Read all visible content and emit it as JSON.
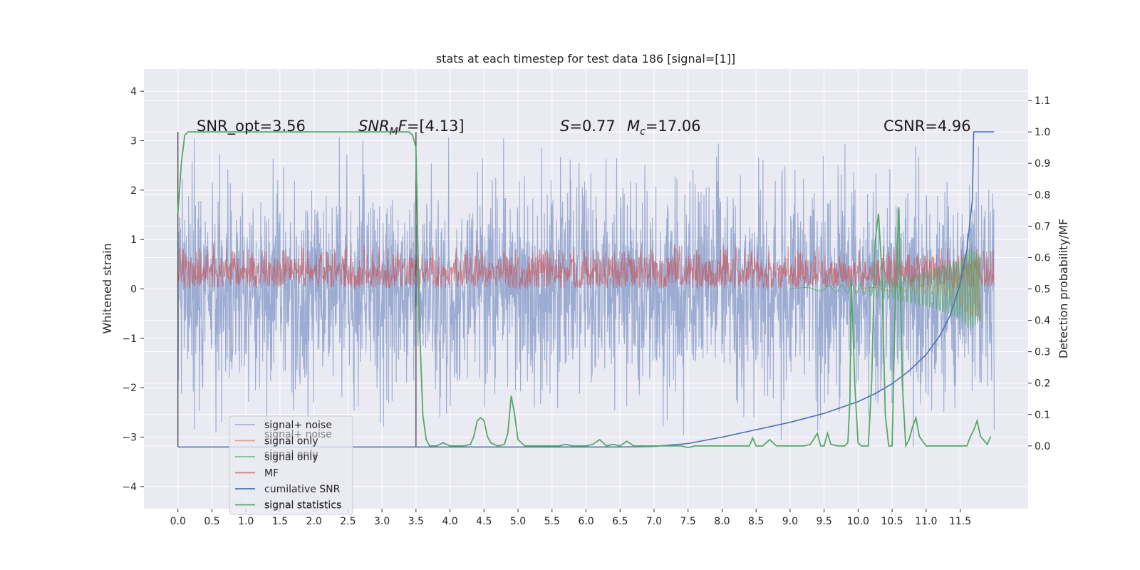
{
  "chart_data": {
    "type": "line",
    "title": "stats at each timestep for test data 186 [signal=[1]]",
    "ylabel_left": "Whitened strain",
    "ylabel_right": "Detection probability/MF",
    "xlim": [
      -0.5,
      12.5
    ],
    "ylim_left": [
      -4.45,
      4.45
    ],
    "ylim_right": [
      -0.2,
      1.2
    ],
    "x_ticks": [
      0.0,
      0.5,
      1.0,
      1.5,
      2.0,
      2.5,
      3.0,
      3.5,
      4.0,
      4.5,
      5.0,
      5.5,
      6.0,
      6.5,
      7.0,
      7.5,
      8.0,
      8.5,
      9.0,
      9.5,
      10.0,
      10.5,
      11.0,
      11.5
    ],
    "x_tick_labels": [
      "0.0",
      "0.5",
      "1.0",
      "1.5",
      "2.0",
      "2.5",
      "3.0",
      "3.5",
      "4.0",
      "4.5",
      "5.0",
      "5.5",
      "6.0",
      "6.5",
      "7.0",
      "7.5",
      "8.0",
      "8.5",
      "9.0",
      "9.5",
      "10.0",
      "10.5",
      "11.0",
      "11.5"
    ],
    "y_left_ticks": [
      4,
      3,
      2,
      1,
      0,
      -1,
      -2,
      -3,
      -4
    ],
    "y_left_tick_labels": [
      "4",
      "3",
      "2",
      "1",
      "0",
      "−1",
      "−2",
      "−3",
      "−4"
    ],
    "y_right_ticks": [
      1.1,
      1.0,
      0.9,
      0.8,
      0.7,
      0.6,
      0.5,
      0.4,
      0.3,
      0.2,
      0.1,
      0.0
    ],
    "y_right_tick_labels": [
      "1.1",
      "1.0",
      "0.9",
      "0.8",
      "0.7",
      "0.6",
      "0.5",
      "0.4",
      "0.3",
      "0.2",
      "0.1",
      "0.0"
    ],
    "grid": true,
    "legend_position": "lower-left",
    "annotations": [
      {
        "id": "snr_opt",
        "text": "SNR_opt=3.56"
      },
      {
        "id": "snr_mf",
        "text": "SNR_MF=[4.13]"
      },
      {
        "id": "s_val",
        "text": "S=0.77"
      },
      {
        "id": "mc_val",
        "text": "M_c=17.06"
      },
      {
        "id": "csnr",
        "text": "CSNR=4.96"
      }
    ],
    "series": [
      {
        "name": "signal+ noise",
        "axis": "left",
        "color": "#8da0cb",
        "description_range": [
          -3.6,
          4.05
        ],
        "x_range": [
          0,
          12
        ],
        "style": "dense-noise"
      },
      {
        "name": "signal only",
        "axis": "left",
        "color": "#dd8452",
        "style": "chirp",
        "x": [
          10.0,
          10.5,
          11.0,
          11.3,
          11.5,
          11.65,
          11.8
        ],
        "envelope": [
          0.02,
          0.04,
          0.08,
          0.15,
          0.3,
          0.55,
          0.65
        ]
      },
      {
        "name": "signal only",
        "axis": "left",
        "color": "#55a868",
        "style": "chirp",
        "x": [
          9.0,
          9.5,
          10.0,
          10.5,
          11.0,
          11.3,
          11.5,
          11.65,
          11.8
        ],
        "envelope": [
          0.01,
          0.05,
          0.1,
          0.2,
          0.35,
          0.5,
          0.6,
          0.85,
          0.65
        ]
      },
      {
        "name": "MF",
        "axis": "left",
        "color": "#c44e52",
        "style": "band",
        "band": [
          0.0,
          0.95
        ],
        "x_range": [
          0,
          12
        ]
      },
      {
        "name": "cumilative SNR",
        "axis": "left",
        "color": "#4c72b0",
        "x": [
          0,
          0.5,
          1,
          1.5,
          2,
          2.5,
          3,
          3.5,
          4,
          4.5,
          5,
          5.5,
          6,
          6.5,
          7,
          7.5,
          8,
          8.5,
          9,
          9.5,
          10,
          10.25,
          10.5,
          10.75,
          11,
          11.2,
          11.35,
          11.5,
          11.6,
          11.68,
          11.7,
          12.0
        ],
        "values": [
          -3.2,
          -3.2,
          -3.2,
          -3.2,
          -3.2,
          -3.2,
          -3.2,
          -3.2,
          -3.2,
          -3.2,
          -3.2,
          -3.2,
          -3.2,
          -3.2,
          -3.19,
          -3.13,
          -3.0,
          -2.85,
          -2.7,
          -2.52,
          -2.28,
          -2.12,
          -1.92,
          -1.66,
          -1.33,
          -0.95,
          -0.55,
          0.1,
          0.8,
          1.8,
          3.18,
          3.18
        ]
      },
      {
        "name": "signal statistics",
        "axis": "right",
        "color": "#55a868",
        "x": [
          0.0,
          0.05,
          0.1,
          0.15,
          0.3,
          0.6,
          1.0,
          1.5,
          2.0,
          2.5,
          3.0,
          3.3,
          3.4,
          3.45,
          3.5,
          3.55,
          3.6,
          3.65,
          3.7,
          3.8,
          3.9,
          4.0,
          4.1,
          4.2,
          4.3,
          4.35,
          4.4,
          4.45,
          4.5,
          4.55,
          4.6,
          4.7,
          4.8,
          4.85,
          4.9,
          4.95,
          5.0,
          5.1,
          5.2,
          5.4,
          5.6,
          5.7,
          5.8,
          6.0,
          6.1,
          6.2,
          6.3,
          6.4,
          6.5,
          6.6,
          6.7,
          6.8,
          7.0,
          7.2,
          7.4,
          7.5,
          7.6,
          7.8,
          8.0,
          8.2,
          8.4,
          8.45,
          8.5,
          8.6,
          8.7,
          8.8,
          8.9,
          9.0,
          9.1,
          9.2,
          9.3,
          9.4,
          9.45,
          9.5,
          9.55,
          9.6,
          9.7,
          9.8,
          9.85,
          9.88,
          9.9,
          9.95,
          10.0,
          10.05,
          10.1,
          10.15,
          10.2,
          10.25,
          10.3,
          10.35,
          10.4,
          10.45,
          10.5,
          10.55,
          10.6,
          10.65,
          10.7,
          10.75,
          10.8,
          10.85,
          10.9,
          11.0,
          11.2,
          11.4,
          11.5,
          11.6,
          11.65,
          11.7,
          11.75,
          11.8,
          11.9,
          11.95
        ],
        "values": [
          0.74,
          0.9,
          0.99,
          1.0,
          1.0,
          1.0,
          1.0,
          1.0,
          1.0,
          1.0,
          1.0,
          1.0,
          1.0,
          0.99,
          0.95,
          0.4,
          0.1,
          0.02,
          0.0,
          0.0,
          0.01,
          0.0,
          0.0,
          0.0,
          0.005,
          0.03,
          0.08,
          0.09,
          0.08,
          0.03,
          0.01,
          0.0,
          0.005,
          0.04,
          0.16,
          0.1,
          0.02,
          0.0,
          0.0,
          0.0,
          0.0,
          0.005,
          0.0,
          0.0,
          0.005,
          0.02,
          0.0,
          0.005,
          0.0,
          0.015,
          0.0,
          0.0,
          0.0,
          0.0,
          0.0,
          -0.005,
          0.0,
          0.0,
          0.0,
          0.0,
          0.0,
          0.025,
          0.0,
          0.0,
          0.02,
          0.0,
          0.0,
          0.0,
          0.0,
          0.0,
          0.005,
          0.04,
          0.0,
          0.0,
          0.04,
          0.005,
          0.0,
          0.0,
          0.01,
          0.15,
          0.53,
          0.2,
          0.01,
          0.0,
          0.0,
          0.0,
          0.2,
          0.65,
          0.74,
          0.55,
          0.1,
          0.0,
          0.0,
          0.5,
          0.76,
          0.2,
          0.0,
          0.02,
          0.06,
          0.09,
          0.03,
          0.0,
          0.0,
          0.0,
          0.0,
          0.0,
          0.03,
          0.05,
          0.08,
          0.03,
          0.005,
          0.03
        ]
      }
    ],
    "vertical_lines": [
      {
        "x": 0.0,
        "from": -3.2,
        "to": 3.18,
        "color": "#333333"
      },
      {
        "x": 3.5,
        "from": -3.2,
        "to": 3.18,
        "color": "#333333"
      }
    ]
  },
  "legend": {
    "items": [
      {
        "label": "signal+ noise",
        "color": "#8da0cb",
        "opacity": 0.7
      },
      {
        "label": "signal only",
        "color": "#dd8452",
        "opacity": 0.7
      },
      {
        "label": "signal only",
        "color": "#55a868",
        "opacity": 0.7
      },
      {
        "label": "MF",
        "color": "#c44e52",
        "opacity": 0.7
      },
      {
        "label": "cumilative SNR",
        "color": "#4c72b0",
        "opacity": 1.0
      },
      {
        "label": "signal statistics",
        "color": "#55a868",
        "opacity": 1.0
      }
    ],
    "ghost_labels": [
      "signal+ noise",
      "signal only",
      "signal statistics"
    ]
  }
}
